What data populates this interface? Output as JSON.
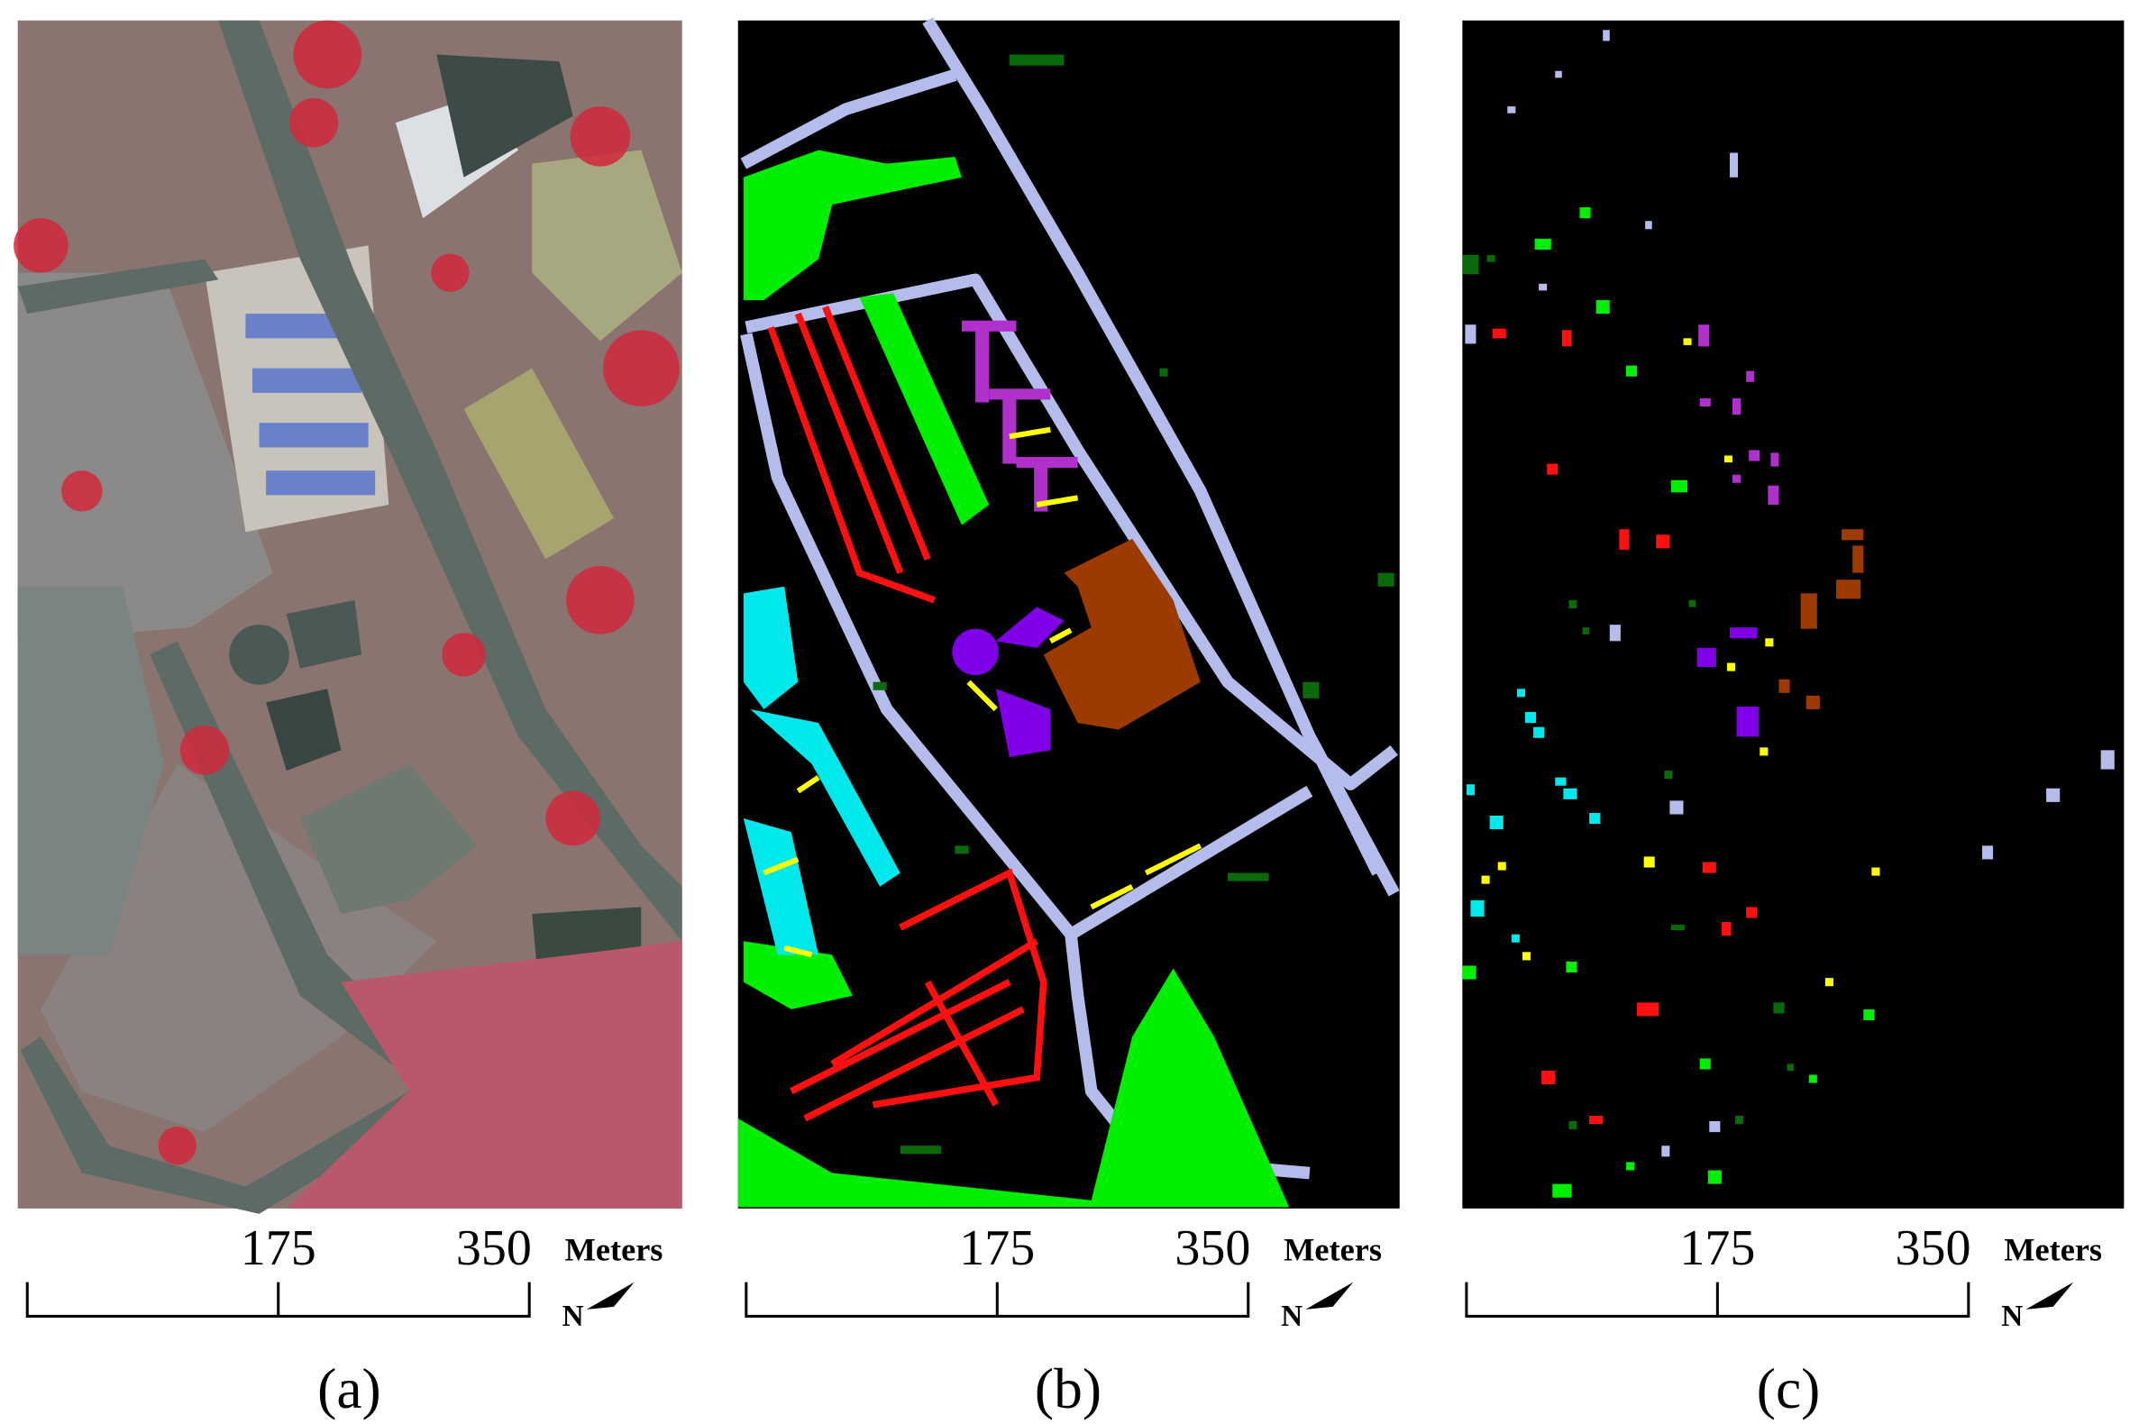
{
  "panels": [
    {
      "caption": "(a)",
      "scale_ticks": [
        "175",
        "350"
      ],
      "scale_unit": "Meters",
      "north": "N"
    },
    {
      "caption": "(b)",
      "scale_ticks": [
        "175",
        "350"
      ],
      "scale_unit": "Meters",
      "north": "N"
    },
    {
      "caption": "(c)",
      "scale_ticks": [
        "175",
        "350"
      ],
      "scale_unit": "Meters",
      "north": "N"
    }
  ]
}
